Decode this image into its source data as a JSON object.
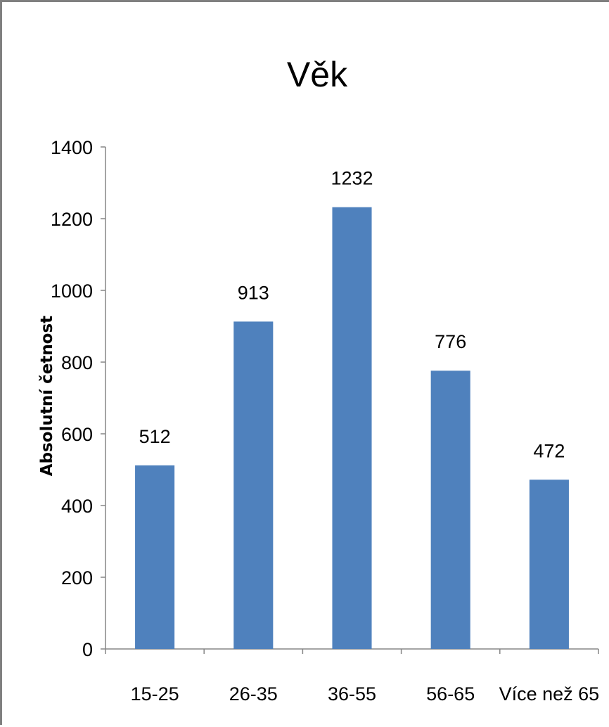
{
  "chart_data": {
    "type": "bar",
    "title": "Věk",
    "xlabel": "",
    "ylabel": "Absolutní četnost",
    "categories": [
      "15-25",
      "26-35",
      "36-55",
      "56-65",
      "Více než 65"
    ],
    "series": [
      {
        "values": [
          512,
          913,
          1232,
          776,
          472
        ]
      }
    ],
    "data_labels": [
      "512",
      "913",
      "1232",
      "776",
      "472"
    ],
    "ylim": [
      0,
      1400
    ],
    "yticks": [
      0,
      200,
      400,
      600,
      800,
      1000,
      1200,
      1400
    ],
    "ytick_labels": [
      "0",
      "200",
      "400",
      "600",
      "800",
      "1000",
      "1200",
      "1400"
    ],
    "grid": false,
    "legend": "none",
    "bar_color": "#4f81bd"
  }
}
